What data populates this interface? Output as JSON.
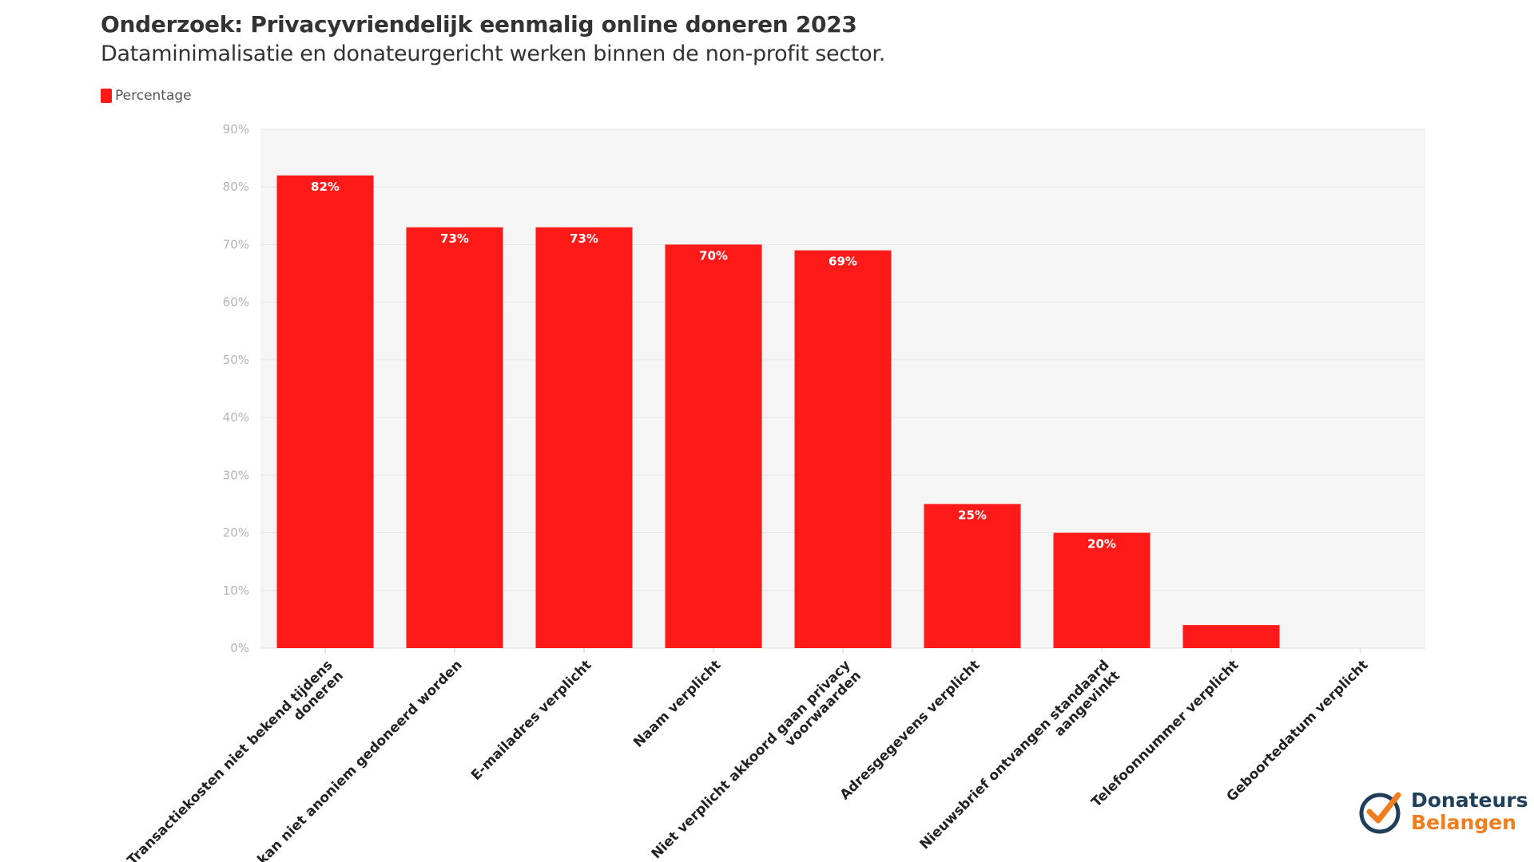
{
  "title": "Onderzoek: Privacyvriendelijk eenmalig online doneren 2023",
  "subtitle": "Dataminimalisatie en donateurgericht werken binnen de non-profit sector.",
  "legend": {
    "label": "Percentage",
    "color": "#ff1a1a"
  },
  "logo": {
    "line1": "Donateurs",
    "line2": "Belangen",
    "icon": "checkmark-circle-icon",
    "colors": [
      "#1f3f5a",
      "#f07d1e"
    ]
  },
  "chart_data": {
    "type": "bar",
    "categories": [
      [
        "Transactiekosten niet bekend tijdens",
        "doneren"
      ],
      [
        "Er kan niet anoniem gedoneerd worden"
      ],
      [
        "E-mailadres verplicht"
      ],
      [
        "Naam verplicht"
      ],
      [
        "Niet verplicht akkoord gaan privacy",
        "voorwaarden"
      ],
      [
        "Adresgegevens verplicht"
      ],
      [
        "Nieuwsbrief ontvangen standaard",
        "aangevinkt"
      ],
      [
        "Telefoonnummer verplicht"
      ],
      [
        "Geboortedatum verplicht"
      ]
    ],
    "values": [
      82,
      73,
      73,
      70,
      69,
      25,
      20,
      4,
      0
    ],
    "value_labels": [
      "82%",
      "73%",
      "73%",
      "70%",
      "69%",
      "25%",
      "20%",
      "",
      ""
    ],
    "ylim": [
      0,
      90
    ],
    "yticks": [
      "0%",
      "10%",
      "20%",
      "30%",
      "40%",
      "50%",
      "60%",
      "70%",
      "80%",
      "90%"
    ],
    "grid": true,
    "bar_color": "#ff1a1a",
    "plot_bg": "#f5f5f5"
  }
}
